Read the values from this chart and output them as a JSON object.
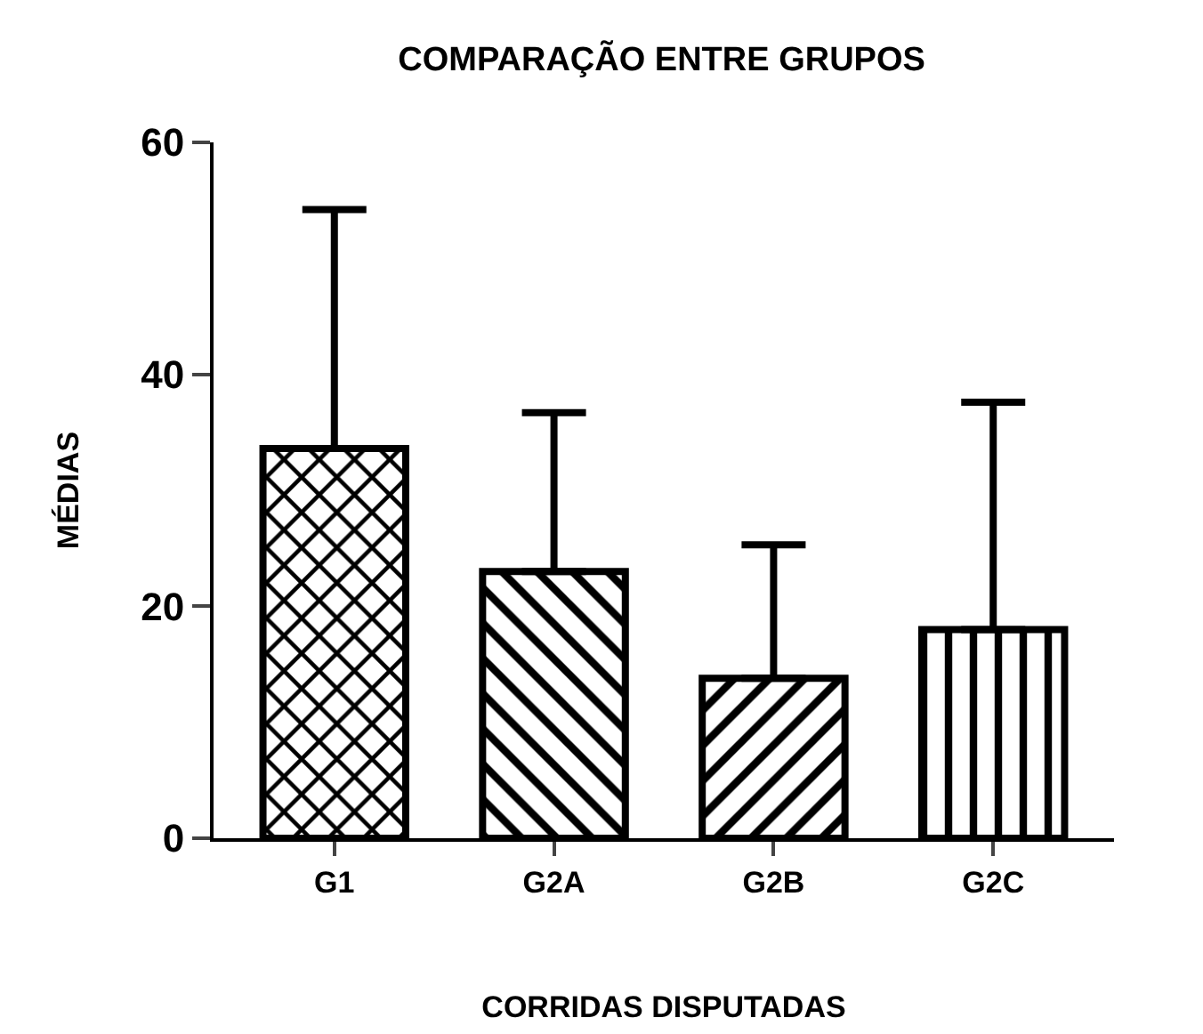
{
  "chart_data": {
    "type": "bar",
    "title": "COMPARAÇÃO ENTRE GRUPOS",
    "xlabel": "CORRIDAS DISPUTADAS",
    "ylabel": "MÉDIAS",
    "categories": [
      "G1",
      "G2A",
      "G2B",
      "G2C"
    ],
    "values": [
      33.6,
      23.0,
      13.8,
      18.0
    ],
    "errors": [
      [
        33.6,
        54.2
      ],
      [
        23.0,
        36.7
      ],
      [
        13.8,
        25.3
      ],
      [
        18.0,
        37.6
      ]
    ],
    "color": "#000000",
    "ylim": [
      0,
      60
    ],
    "yticks": [
      0,
      20,
      40,
      60
    ],
    "grid": false
  }
}
